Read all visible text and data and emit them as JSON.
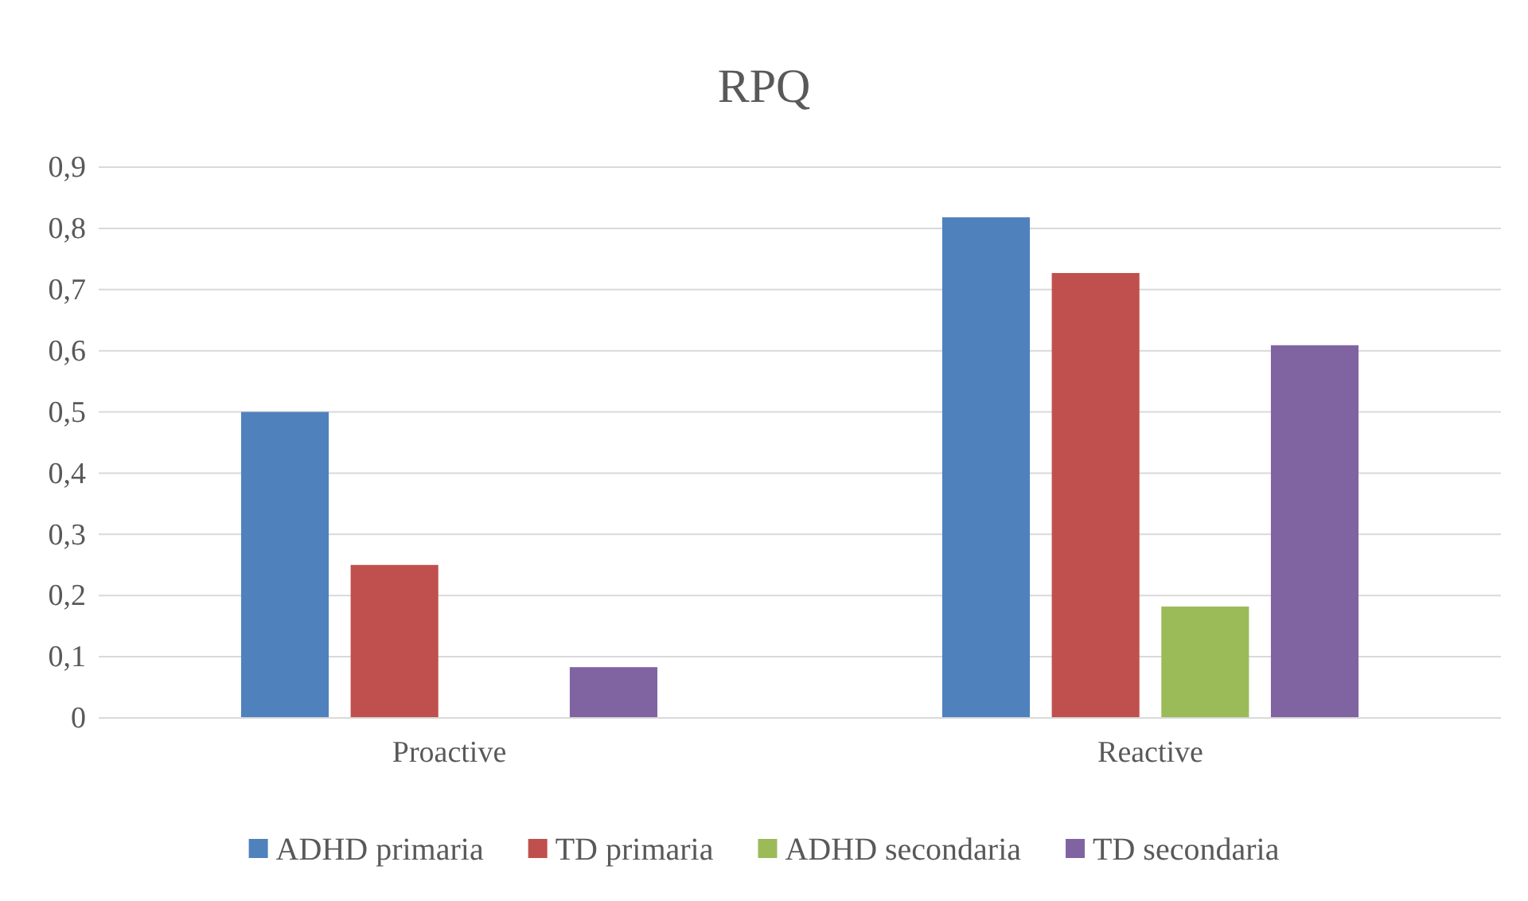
{
  "chart_data": {
    "type": "bar",
    "title": "RPQ",
    "categories": [
      "Proactive",
      "Reactive"
    ],
    "series": [
      {
        "name": "ADHD primaria",
        "color": "#4f81bd",
        "values": [
          0.5,
          0.818
        ]
      },
      {
        "name": "TD primaria",
        "color": "#c0504d",
        "values": [
          0.25,
          0.727
        ]
      },
      {
        "name": "ADHD secondaria",
        "color": "#9bbb59",
        "values": [
          0,
          0.182
        ]
      },
      {
        "name": "TD secondaria",
        "color": "#8064a2",
        "values": [
          0.083,
          0.609
        ]
      }
    ],
    "ylim": [
      0,
      0.9
    ],
    "yticks": [
      0,
      {
        "value": 0.1,
        "label": "0,1"
      },
      {
        "value": 0.2,
        "label": "0,2"
      },
      {
        "value": 0.3,
        "label": "0,3"
      },
      {
        "value": 0.4,
        "label": "0,4"
      },
      {
        "value": 0.5,
        "label": "0,5"
      },
      {
        "value": 0.6,
        "label": "0,6"
      },
      {
        "value": 0.7,
        "label": "0,7"
      },
      {
        "value": 0.8,
        "label": "0,8"
      },
      {
        "value": 0.9,
        "label": "0,9"
      }
    ],
    "grid": "y",
    "legend": "bottom"
  }
}
